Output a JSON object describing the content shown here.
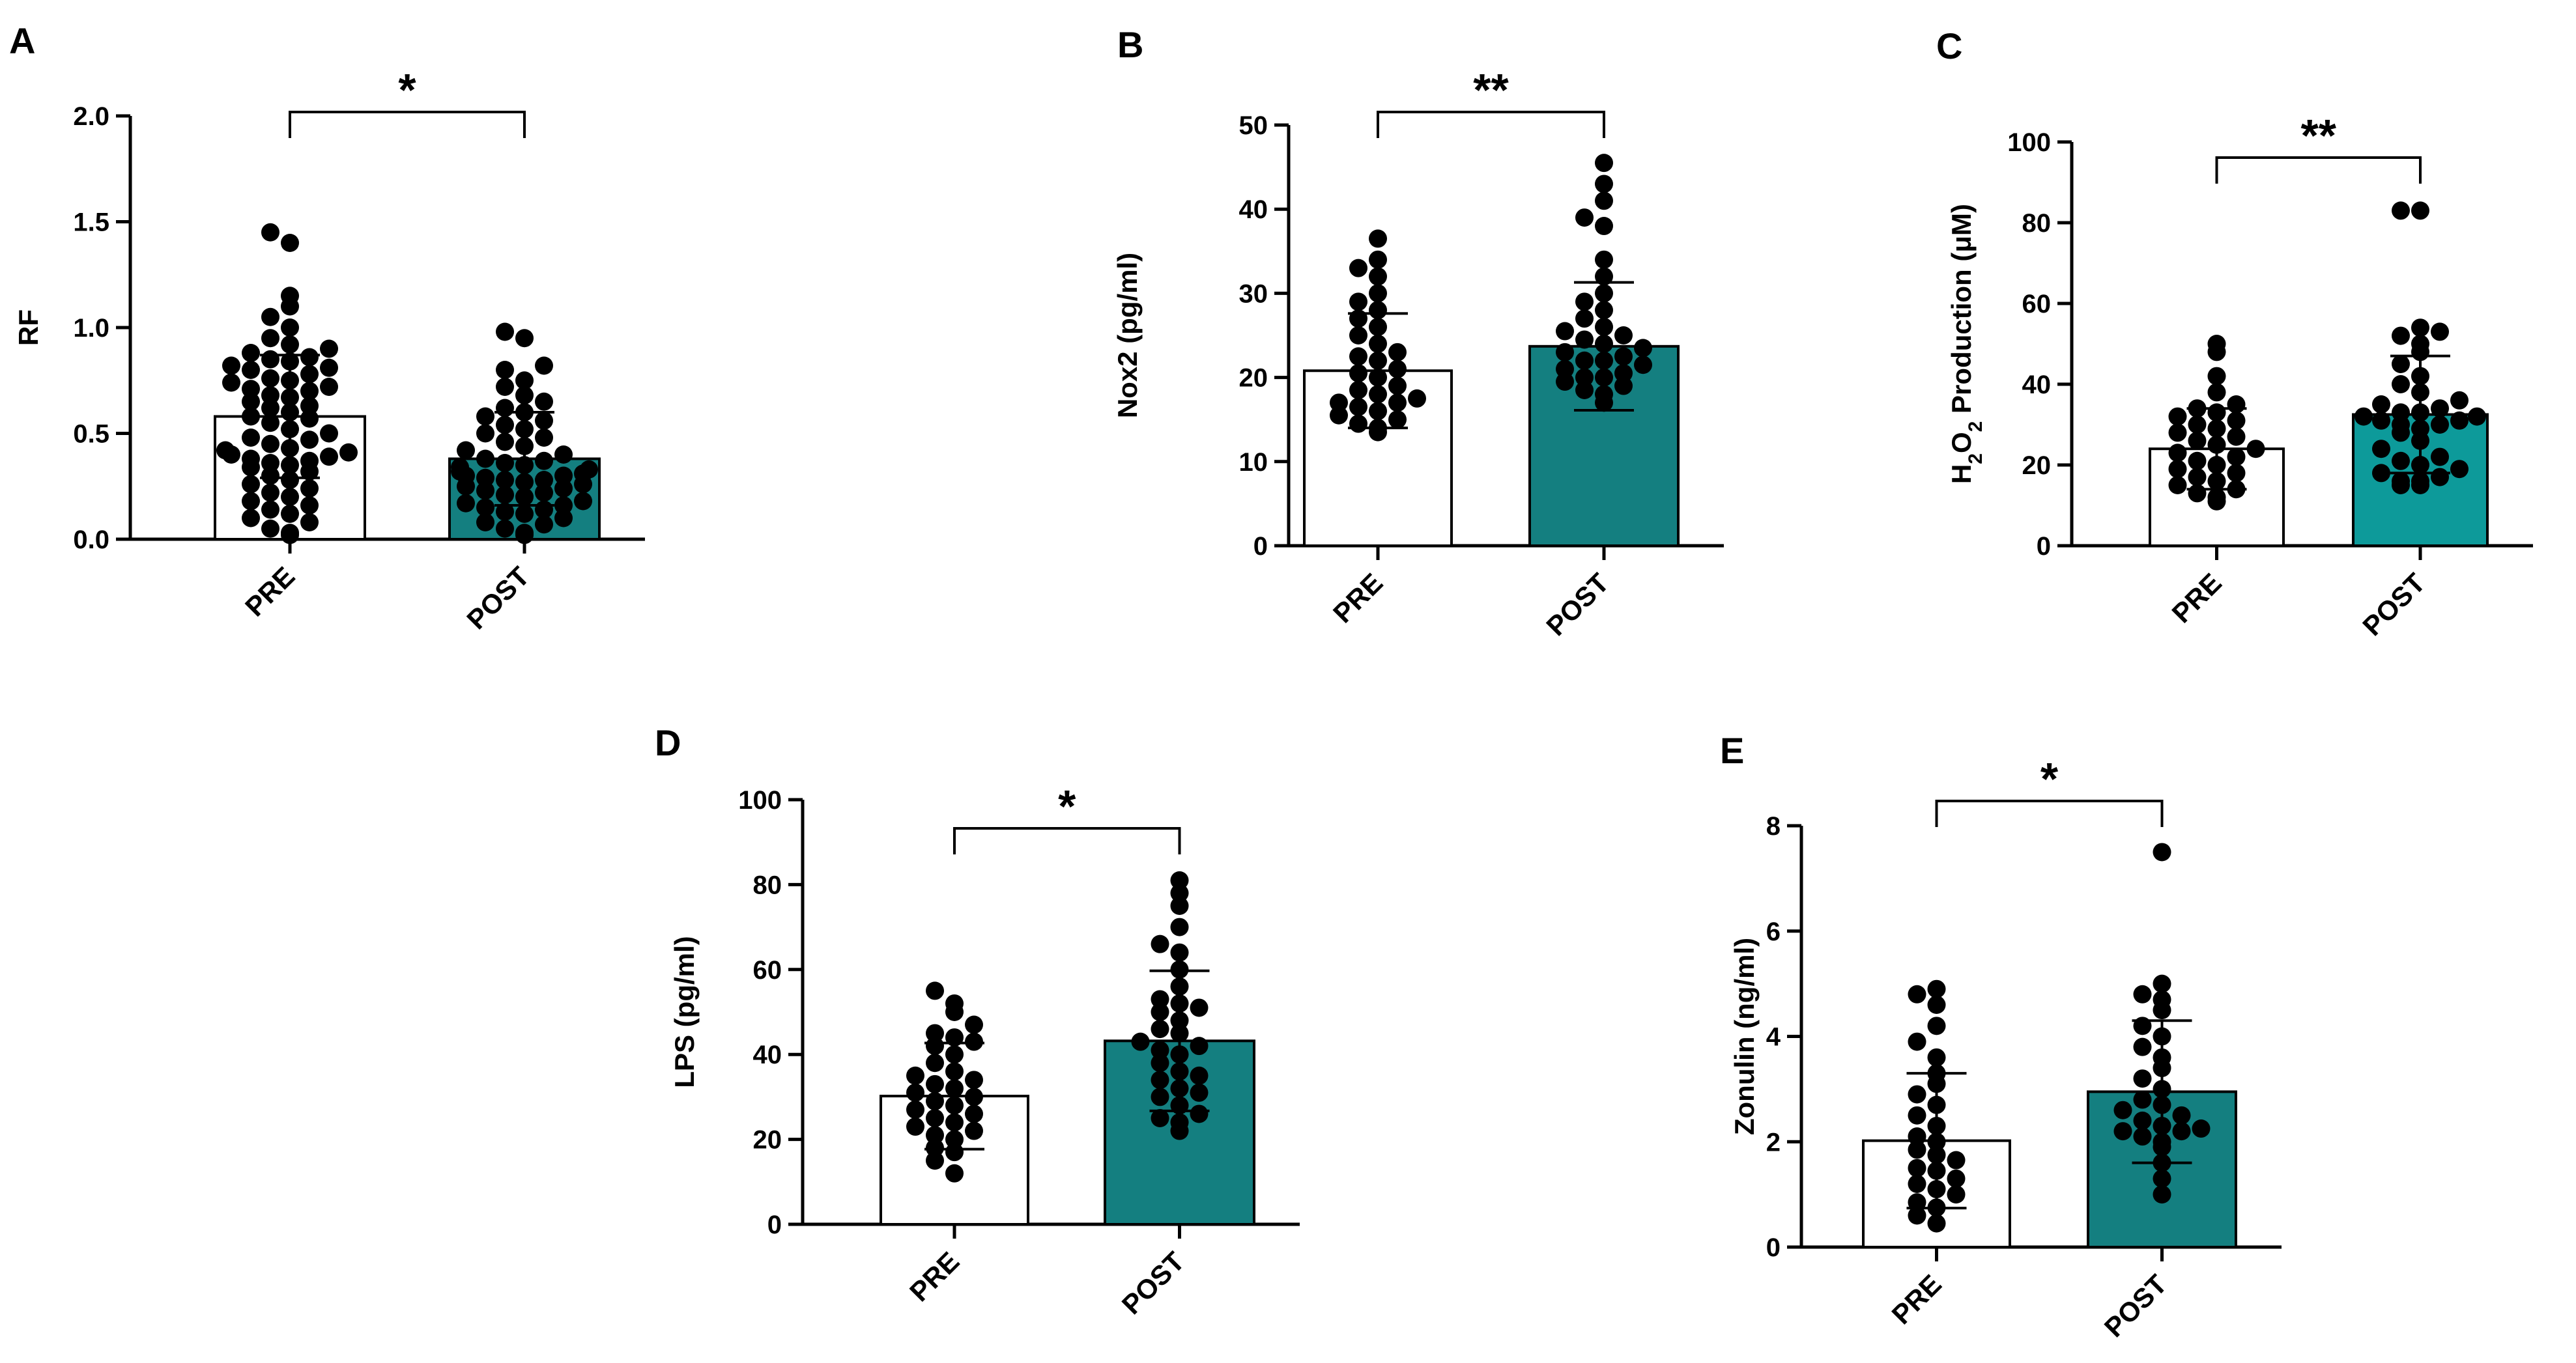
{
  "figure": {
    "description_free": true
  },
  "chart_data": [
    {
      "panel_label": "A",
      "type": "bar",
      "categories": [
        "PRE",
        "POST"
      ],
      "values": [
        0.58,
        0.38
      ],
      "error": [
        0.29,
        0.22
      ],
      "ylabel": "RF",
      "ylabel_sub": "",
      "ylim": [
        0,
        2.0
      ],
      "yticks": [
        "0.0",
        "0.5",
        "1.0",
        "1.5",
        "2.0"
      ],
      "ytick_values": [
        0,
        0.5,
        1.0,
        1.5,
        2.0
      ],
      "significance": "*",
      "bar_colors": [
        "#ffffff",
        "#147f80"
      ],
      "points": [
        [
          0.02,
          0.03,
          0.05,
          0.08,
          0.1,
          0.12,
          0.14,
          0.16,
          0.18,
          0.2,
          0.22,
          0.24,
          0.26,
          0.28,
          0.3,
          0.32,
          0.34,
          0.35,
          0.36,
          0.37,
          0.38,
          0.39,
          0.4,
          0.41,
          0.42,
          0.43,
          0.45,
          0.47,
          0.48,
          0.5,
          0.52,
          0.55,
          0.57,
          0.58,
          0.6,
          0.62,
          0.63,
          0.65,
          0.67,
          0.68,
          0.7,
          0.71,
          0.72,
          0.74,
          0.75,
          0.76,
          0.78,
          0.8,
          0.81,
          0.82,
          0.84,
          0.85,
          0.86,
          0.88,
          0.9,
          0.92,
          0.95,
          1.0,
          1.05,
          1.1,
          1.15,
          1.4,
          1.45
        ],
        [
          0.02,
          0.03,
          0.05,
          0.07,
          0.08,
          0.1,
          0.12,
          0.13,
          0.14,
          0.15,
          0.16,
          0.17,
          0.18,
          0.2,
          0.21,
          0.22,
          0.23,
          0.24,
          0.25,
          0.26,
          0.27,
          0.28,
          0.28,
          0.29,
          0.3,
          0.3,
          0.31,
          0.32,
          0.33,
          0.34,
          0.35,
          0.36,
          0.37,
          0.38,
          0.4,
          0.42,
          0.44,
          0.46,
          0.48,
          0.5,
          0.52,
          0.54,
          0.56,
          0.58,
          0.6,
          0.62,
          0.65,
          0.68,
          0.72,
          0.75,
          0.8,
          0.82,
          0.95,
          0.98
        ]
      ]
    },
    {
      "panel_label": "B",
      "type": "bar",
      "categories": [
        "PRE",
        "POST"
      ],
      "values": [
        20.8,
        23.7
      ],
      "error": [
        6.8,
        7.6
      ],
      "ylabel": "Nox2 (pg/ml)",
      "ylabel_sub": "",
      "ylim": [
        0,
        50
      ],
      "yticks": [
        "0",
        "10",
        "20",
        "30",
        "40",
        "50"
      ],
      "ytick_values": [
        0,
        10,
        20,
        30,
        40,
        50
      ],
      "significance": "**",
      "bar_colors": [
        "#ffffff",
        "#147f80"
      ],
      "points": [
        [
          13.5,
          14,
          14.5,
          15,
          15.5,
          16,
          16.5,
          17,
          17,
          17.5,
          18,
          18.5,
          19,
          20,
          20.5,
          21,
          22,
          22.5,
          23,
          24,
          25,
          26,
          27,
          28,
          29,
          30,
          32,
          33,
          34,
          36.5
        ],
        [
          17,
          18,
          18.5,
          19,
          19.5,
          20,
          20,
          20.5,
          21,
          21.5,
          22,
          22,
          22.5,
          23,
          23.5,
          24,
          24.5,
          25,
          25.5,
          26,
          27,
          28,
          29,
          30,
          32,
          34,
          38,
          39,
          41,
          43,
          45.5
        ]
      ]
    },
    {
      "panel_label": "C",
      "type": "bar",
      "categories": [
        "PRE",
        "POST"
      ],
      "values": [
        24,
        32.5
      ],
      "error": [
        10,
        14.5
      ],
      "ylabel": "Production (μM)",
      "ylabel_prefix": "H2O2",
      "ylim": [
        0,
        100
      ],
      "yticks": [
        "0",
        "20",
        "40",
        "60",
        "80",
        "100"
      ],
      "ytick_values": [
        0,
        20,
        40,
        60,
        80,
        100
      ],
      "significance": "**",
      "bar_colors": [
        "#ffffff",
        "#0d9a9a"
      ],
      "points": [
        [
          11,
          12,
          13,
          14,
          15,
          16,
          17,
          18,
          19,
          20,
          21,
          22,
          23,
          24,
          25,
          26,
          27,
          28,
          29,
          30,
          31,
          32,
          33,
          34,
          35,
          38,
          42,
          48,
          50
        ],
        [
          15,
          15,
          16,
          16,
          17,
          18,
          19,
          20,
          21,
          22,
          24,
          26,
          28,
          29,
          30,
          30,
          31,
          31,
          32,
          32,
          33,
          33,
          34,
          35,
          36,
          38,
          40,
          42,
          45,
          48,
          50,
          52,
          53,
          54,
          83,
          83
        ]
      ]
    },
    {
      "panel_label": "D",
      "type": "bar",
      "categories": [
        "PRE",
        "POST"
      ],
      "values": [
        30.2,
        43.2
      ],
      "error": [
        12.5,
        16.5
      ],
      "ylabel": "LPS (pg/ml)",
      "ylabel_sub": "",
      "ylim": [
        0,
        100
      ],
      "yticks": [
        "0",
        "20",
        "40",
        "60",
        "80",
        "100"
      ],
      "ytick_values": [
        0,
        20,
        40,
        60,
        80,
        100
      ],
      "significance": "*",
      "bar_colors": [
        "#ffffff",
        "#147f80"
      ],
      "points": [
        [
          12,
          15,
          17,
          18,
          20,
          21,
          22,
          23,
          24,
          25,
          26,
          27,
          28,
          29,
          30,
          31,
          32,
          33,
          34,
          35,
          36,
          38,
          40,
          42,
          43,
          44,
          45,
          47,
          50,
          52,
          55
        ],
        [
          22,
          24,
          25,
          26,
          28,
          30,
          31,
          32,
          34,
          35,
          36,
          38,
          40,
          41,
          42,
          43,
          45,
          46,
          48,
          50,
          51,
          52,
          53,
          56,
          60,
          64,
          66,
          70,
          75,
          78,
          81
        ]
      ]
    },
    {
      "panel_label": "E",
      "type": "bar",
      "categories": [
        "PRE",
        "POST"
      ],
      "values": [
        2.02,
        2.95
      ],
      "error": [
        1.28,
        1.35
      ],
      "ylabel": "Zonulin (ng/ml)",
      "ylabel_sub": "",
      "ylim": [
        0,
        8
      ],
      "yticks": [
        "0",
        "2",
        "4",
        "6",
        "8"
      ],
      "ytick_values": [
        0,
        2,
        4,
        6,
        8
      ],
      "significance": "*",
      "bar_colors": [
        "#ffffff",
        "#147f80"
      ],
      "points": [
        [
          0.45,
          0.6,
          0.75,
          0.85,
          1.0,
          1.1,
          1.2,
          1.3,
          1.45,
          1.5,
          1.65,
          1.75,
          1.85,
          2.0,
          2.1,
          2.3,
          2.5,
          2.7,
          2.9,
          3.1,
          3.3,
          3.6,
          3.9,
          4.2,
          4.6,
          4.8,
          4.9
        ],
        [
          1.0,
          1.3,
          1.6,
          1.9,
          2.0,
          2.1,
          2.2,
          2.2,
          2.25,
          2.3,
          2.4,
          2.5,
          2.6,
          2.7,
          2.8,
          3.0,
          3.2,
          3.4,
          3.6,
          3.8,
          4.0,
          4.2,
          4.5,
          4.7,
          4.8,
          5.0,
          7.5
        ]
      ]
    }
  ]
}
